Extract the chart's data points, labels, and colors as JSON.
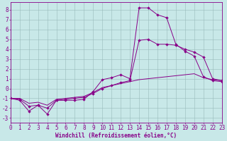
{
  "xlabel": "Windchill (Refroidissement éolien,°C)",
  "background_color": "#c8e8e8",
  "grid_color": "#99bbbb",
  "line_color": "#880088",
  "xlim": [
    0,
    23
  ],
  "ylim": [
    -3.5,
    8.8
  ],
  "xticks": [
    0,
    1,
    2,
    3,
    4,
    5,
    6,
    7,
    8,
    9,
    10,
    11,
    12,
    13,
    14,
    15,
    16,
    17,
    18,
    19,
    20,
    21,
    22,
    23
  ],
  "yticks": [
    -3,
    -2,
    -1,
    0,
    1,
    2,
    3,
    4,
    5,
    6,
    7,
    8
  ],
  "line1_x": [
    0,
    1,
    2,
    3,
    4,
    5,
    6,
    7,
    8,
    9,
    10,
    11,
    12,
    13,
    14,
    15,
    16,
    17,
    18,
    19,
    20,
    21,
    22,
    23
  ],
  "line1_y": [
    -1.0,
    -1.2,
    -2.3,
    -1.7,
    -2.6,
    -1.2,
    -1.2,
    -1.2,
    -1.1,
    -0.3,
    0.9,
    1.1,
    1.4,
    1.0,
    8.2,
    8.2,
    7.5,
    7.2,
    4.5,
    3.8,
    3.3,
    1.2,
    0.8,
    0.7
  ],
  "line2_x": [
    0,
    1,
    2,
    3,
    4,
    5,
    6,
    7,
    8,
    9,
    10,
    11,
    12,
    13,
    14,
    15,
    16,
    17,
    18,
    19,
    20,
    21,
    22,
    23
  ],
  "line2_y": [
    -1.0,
    -1.1,
    -1.8,
    -1.7,
    -2.0,
    -1.2,
    -1.1,
    -1.0,
    -0.9,
    -0.5,
    0.0,
    0.3,
    0.6,
    0.8,
    4.9,
    5.0,
    4.5,
    4.5,
    4.4,
    4.0,
    3.7,
    3.2,
    1.0,
    0.8
  ],
  "line3_x": [
    0,
    1,
    2,
    3,
    4,
    5,
    6,
    7,
    8,
    9,
    10,
    11,
    12,
    13,
    14,
    15,
    16,
    17,
    18,
    19,
    20,
    21,
    22,
    23
  ],
  "line3_y": [
    -1.0,
    -1.0,
    -1.5,
    -1.4,
    -1.7,
    -1.1,
    -1.0,
    -0.9,
    -0.8,
    -0.4,
    0.1,
    0.3,
    0.5,
    0.7,
    0.9,
    1.0,
    1.1,
    1.2,
    1.3,
    1.4,
    1.5,
    1.1,
    0.9,
    0.8
  ],
  "tick_fontsize": 5.5,
  "xlabel_fontsize": 5.5,
  "marker_size": 2.0,
  "linewidth": 0.7
}
